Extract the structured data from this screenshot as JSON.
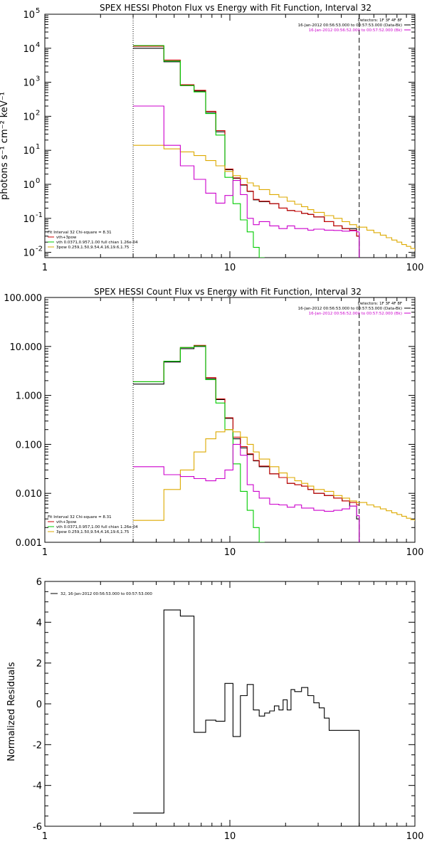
{
  "chart_data": [
    {
      "type": "line",
      "title": "SPEX HESSI Photon Flux vs Energy with Fit Function, Interval 32",
      "xlabel": "",
      "ylabel": "photons s⁻¹ cm⁻² keV⁻¹",
      "xscale": "log",
      "yscale": "log",
      "xlim": [
        1,
        100
      ],
      "ylim": [
        0.007,
        100000
      ],
      "xticks": [
        1,
        10,
        100
      ],
      "xtick_labels": [
        "1",
        "10",
        "100"
      ],
      "yticks": [
        0.01,
        0.1,
        1,
        10,
        100,
        1000,
        10000,
        100000
      ],
      "ytick_label_parts": [
        [
          "10",
          "-2"
        ],
        [
          "10",
          "-1"
        ],
        [
          "10",
          "0"
        ],
        [
          "10",
          "1"
        ],
        [
          "10",
          "2"
        ],
        [
          "10",
          "3"
        ],
        [
          "10",
          "4"
        ],
        [
          "10",
          "5"
        ]
      ],
      "vlines": [
        {
          "x": 3,
          "style": "dotted",
          "color": "#000000"
        },
        {
          "x": 50,
          "style": "dashed",
          "color": "#000000"
        }
      ],
      "legend_top_right": [
        {
          "text": "Detectors: 1F 3F 4F 8F",
          "color": "#000000"
        },
        {
          "text": "16-Jan-2012 00:56:53.000 to 00:57:53.000 (Data-Bk)",
          "color": "#000000"
        },
        {
          "text": "16-Jan-2012 00:56:52.000 to 00:57:52.000 (Bk)",
          "color": "#cc00cc"
        }
      ],
      "legend_bottom_left": [
        {
          "text": "Fit Interval 32   Chi-square = 8.31",
          "color": "#000000"
        },
        {
          "text": "vth+3pow",
          "color": "#cc0000"
        },
        {
          "text": "vth 0.0371,0.957,1.00  full chian 1.26e-04",
          "color": "#00cc00"
        },
        {
          "text": "3pow 0.259,1.50,9.54,4.16,19.6,1.75",
          "color": "#ddaa00"
        }
      ],
      "series": [
        {
          "color": "#000000",
          "x": [
            3,
            3.4,
            4.4,
            5.4,
            6.4,
            7.4,
            8.4,
            9.4,
            10.4,
            11.4,
            12.4,
            13.4,
            14.4,
            16.4,
            18.4,
            20.4,
            22.4,
            24.4,
            26.4,
            28.4,
            32.4,
            36.4,
            40.4,
            44.4,
            48.4,
            50
          ],
          "y": [
            10000,
            10000,
            4000,
            800,
            550,
            130,
            35,
            2.7,
            1.5,
            0.95,
            0.62,
            0.35,
            0.31,
            0.27,
            0.2,
            0.17,
            0.16,
            0.14,
            0.13,
            0.11,
            0.08,
            0.06,
            0.05,
            0.05,
            0.03,
            0.007
          ]
        },
        {
          "color": "#cc0000",
          "x": [
            3,
            3.4,
            4.4,
            5.4,
            6.4,
            7.4,
            8.4,
            9.4,
            10.4,
            11.4,
            12.4,
            13.4,
            14.4,
            16.4,
            18.4,
            20.4,
            22.4,
            24.4,
            26.4,
            28.4,
            32.4,
            36.4,
            40.4,
            44.4,
            48.4,
            50
          ],
          "y": [
            11500,
            11500,
            4500,
            850,
            580,
            140,
            38,
            2.8,
            1.55,
            0.98,
            0.63,
            0.36,
            0.32,
            0.27,
            0.2,
            0.17,
            0.16,
            0.14,
            0.13,
            0.11,
            0.08,
            0.06,
            0.05,
            0.045,
            0.03,
            0.03
          ]
        },
        {
          "color": "#00cc00",
          "x": [
            3,
            3.4,
            4.4,
            5.4,
            6.4,
            7.4,
            8.4,
            9.4,
            10.4,
            11.4,
            12.4,
            13.4,
            14.4,
            15.4
          ],
          "y": [
            12000,
            12000,
            4200,
            800,
            520,
            120,
            28,
            1.6,
            0.27,
            0.09,
            0.04,
            0.014,
            0.006,
            0.006
          ]
        },
        {
          "color": "#ddaa00",
          "x": [
            3,
            3.4,
            4.4,
            5.4,
            6.4,
            7.4,
            8.4,
            9.4,
            10.4,
            11.4,
            12.4,
            13.4,
            14.4,
            16.4,
            18.4,
            20.4,
            22.4,
            24.4,
            26.4,
            28.4,
            32.4,
            36.4,
            40.4,
            44.4,
            48.4,
            55,
            60,
            65,
            70,
            75,
            80,
            85,
            90,
            95,
            100
          ],
          "y": [
            14,
            14,
            11,
            9,
            7,
            5,
            3.5,
            2.4,
            1.8,
            1.5,
            1.1,
            0.9,
            0.7,
            0.5,
            0.42,
            0.32,
            0.26,
            0.22,
            0.18,
            0.15,
            0.12,
            0.1,
            0.08,
            0.065,
            0.055,
            0.045,
            0.038,
            0.032,
            0.027,
            0.023,
            0.02,
            0.017,
            0.015,
            0.013,
            0.011
          ]
        },
        {
          "color": "#cc00cc",
          "x": [
            3,
            3.4,
            4.4,
            5.4,
            6.4,
            7.4,
            8.4,
            9.4,
            10.4,
            11.4,
            12.4,
            13.4,
            14.4,
            16.4,
            18.4,
            20.4,
            22.4,
            24.4,
            26.4,
            28.4,
            32.4,
            36.4,
            40.4,
            44.4,
            48.4,
            50
          ],
          "y": [
            200,
            200,
            14,
            3.5,
            1.4,
            0.55,
            0.28,
            0.47,
            1.3,
            0.5,
            0.1,
            0.065,
            0.08,
            0.06,
            0.05,
            0.06,
            0.05,
            0.05,
            0.045,
            0.048,
            0.045,
            0.044,
            0.042,
            0.043,
            0.04,
            0.007
          ]
        }
      ]
    },
    {
      "type": "line",
      "title": "SPEX HESSI Count Flux vs Energy with Fit Function, Interval 32",
      "xlabel": "",
      "ylabel": "",
      "xscale": "log",
      "yscale": "log",
      "xlim": [
        1,
        100
      ],
      "ylim": [
        0.001,
        100
      ],
      "xticks": [
        1,
        10,
        100
      ],
      "xtick_labels": [
        "1",
        "10",
        "100"
      ],
      "yticks": [
        0.001,
        0.01,
        0.1,
        1,
        10,
        100
      ],
      "ytick_labels": [
        "0.001",
        "0.010",
        "0.100",
        "1.000",
        "10.000",
        "100.000"
      ],
      "vlines": [
        {
          "x": 3,
          "style": "dotted",
          "color": "#000000"
        },
        {
          "x": 50,
          "style": "dashed",
          "color": "#000000"
        }
      ],
      "legend_top_right": [
        {
          "text": "Detectors: 1F 3F 4F 8F",
          "color": "#000000"
        },
        {
          "text": "16-Jan-2012 00:56:53.000 to 00:57:53.000 (Data-Bk)",
          "color": "#000000"
        },
        {
          "text": "16-Jan-2012 00:56:52.000 to 00:57:52.000 (Bk)",
          "color": "#cc00cc"
        }
      ],
      "legend_bottom_left": [
        {
          "text": "Fit Interval 32   Chi-square = 8.31",
          "color": "#000000"
        },
        {
          "text": "vth+3pow",
          "color": "#cc0000"
        },
        {
          "text": "vth 0.0371,0.957,1.00  full chian 1.26e-04",
          "color": "#00cc00"
        },
        {
          "text": "3pow 0.259,1.50,9.54,4.16,19.6,1.75",
          "color": "#ddaa00"
        }
      ],
      "series": [
        {
          "color": "#000000",
          "x": [
            3,
            3.4,
            4.4,
            5.4,
            6.4,
            7.4,
            8.4,
            9.4,
            10.4,
            11.4,
            12.4,
            13.4,
            14.4,
            16.4,
            18.4,
            20.4,
            22.4,
            24.4,
            26.4,
            28.4,
            32.4,
            36.4,
            40.4,
            44.4,
            48.4,
            50
          ],
          "y": [
            1.7,
            1.7,
            4.8,
            9.0,
            10.0,
            2.2,
            0.82,
            0.34,
            0.13,
            0.085,
            0.062,
            0.046,
            0.035,
            0.025,
            0.021,
            0.016,
            0.015,
            0.014,
            0.012,
            0.01,
            0.009,
            0.008,
            0.007,
            0.0055,
            0.003,
            0.001
          ]
        },
        {
          "color": "#cc0000",
          "x": [
            3,
            3.4,
            4.4,
            5.4,
            6.4,
            7.4,
            8.4,
            9.4,
            10.4,
            11.4,
            12.4,
            13.4,
            14.4,
            16.4,
            18.4,
            20.4,
            22.4,
            24.4,
            26.4,
            28.4,
            32.4,
            36.4,
            40.4,
            44.4,
            48.4,
            50
          ],
          "y": [
            1.9,
            1.9,
            5.0,
            9.5,
            10.5,
            2.3,
            0.85,
            0.35,
            0.14,
            0.09,
            0.064,
            0.047,
            0.036,
            0.025,
            0.021,
            0.016,
            0.015,
            0.014,
            0.012,
            0.01,
            0.009,
            0.008,
            0.007,
            0.0065,
            0.0058,
            0.0058
          ]
        },
        {
          "color": "#00cc00",
          "x": [
            3,
            3.4,
            4.4,
            5.4,
            6.4,
            7.4,
            8.4,
            9.4,
            10.4,
            11.4,
            12.4,
            13.4,
            14.4,
            15.4
          ],
          "y": [
            1.9,
            1.9,
            5.0,
            9.5,
            10.2,
            2.1,
            0.7,
            0.2,
            0.04,
            0.011,
            0.0045,
            0.002,
            0.0009,
            0.0009
          ]
        },
        {
          "color": "#ddaa00",
          "x": [
            3,
            3.4,
            4.4,
            5.4,
            6.4,
            7.4,
            8.4,
            9.4,
            10.4,
            11.4,
            12.4,
            13.4,
            14.4,
            16.4,
            18.4,
            20.4,
            22.4,
            24.4,
            26.4,
            28.4,
            32.4,
            36.4,
            40.4,
            44.4,
            48.4,
            55,
            60,
            65,
            70,
            75,
            80,
            85,
            90,
            95,
            100
          ],
          "y": [
            0.0028,
            0.0028,
            0.012,
            0.03,
            0.07,
            0.13,
            0.18,
            0.2,
            0.18,
            0.14,
            0.1,
            0.07,
            0.05,
            0.035,
            0.026,
            0.021,
            0.018,
            0.016,
            0.014,
            0.012,
            0.011,
            0.009,
            0.008,
            0.007,
            0.0065,
            0.0058,
            0.0053,
            0.0048,
            0.0044,
            0.004,
            0.0037,
            0.0034,
            0.0031,
            0.0029,
            0.0027
          ]
        },
        {
          "color": "#cc00cc",
          "x": [
            3,
            3.4,
            4.4,
            5.4,
            6.4,
            7.4,
            8.4,
            9.4,
            10.4,
            11.4,
            12.4,
            13.4,
            14.4,
            16.4,
            18.4,
            20.4,
            22.4,
            24.4,
            26.4,
            28.4,
            32.4,
            36.4,
            40.4,
            44.4,
            48.4,
            50
          ],
          "y": [
            0.035,
            0.035,
            0.024,
            0.022,
            0.02,
            0.018,
            0.02,
            0.03,
            0.1,
            0.06,
            0.015,
            0.011,
            0.008,
            0.006,
            0.0058,
            0.0052,
            0.0058,
            0.005,
            0.005,
            0.0045,
            0.0043,
            0.0045,
            0.0048,
            0.0055,
            0.0035,
            0.001
          ]
        }
      ]
    },
    {
      "type": "line",
      "title": "",
      "xlabel": "",
      "ylabel": "Normalized Residuals",
      "xscale": "log",
      "yscale": "linear",
      "xlim": [
        1,
        100
      ],
      "ylim": [
        -6,
        6
      ],
      "xticks": [
        1,
        10,
        100
      ],
      "xtick_labels": [
        "1",
        "10",
        "100"
      ],
      "yticks": [
        -6,
        -4,
        -2,
        0,
        2,
        4,
        6
      ],
      "ytick_labels": [
        "-6",
        "-4",
        "-2",
        "0",
        "2",
        "4",
        "6"
      ],
      "legend_top_left": [
        {
          "text": "32, 16-Jan-2012 00:56:53.000 to 00:57:53.000",
          "color": "#000000"
        }
      ],
      "series": [
        {
          "color": "#000000",
          "x": [
            3,
            3.4,
            4.4,
            5.4,
            6.4,
            7.4,
            8.4,
            9.4,
            10.4,
            11.4,
            12.4,
            13.4,
            14.4,
            15.4,
            16.4,
            17.4,
            18.4,
            19.4,
            20.4,
            21.4,
            22.4,
            24.4,
            26.4,
            28.4,
            30.4,
            32.4,
            34.4,
            36.4,
            38.4,
            40.4,
            44.4,
            48.4,
            50
          ],
          "y": [
            -5.35,
            -5.35,
            4.6,
            4.3,
            -1.4,
            -0.8,
            -0.85,
            1.0,
            -1.6,
            0.4,
            0.95,
            -0.3,
            -0.6,
            -0.45,
            -0.35,
            -0.1,
            -0.3,
            0.2,
            -0.3,
            0.7,
            0.6,
            0.8,
            0.4,
            0.05,
            -0.2,
            -0.7,
            -1.3,
            -1.3,
            -1.3,
            -1.3,
            -1.3,
            -1.3,
            -6
          ]
        }
      ]
    }
  ]
}
